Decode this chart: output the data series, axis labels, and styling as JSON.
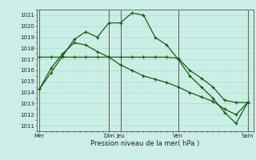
{
  "xlabel": "Pression niveau de la mer( hPa )",
  "background_color": "#cceee8",
  "grid_major_color": "#aaddcc",
  "grid_minor_color": "#bbeecc",
  "line_color": "#1a5c1a",
  "ylim": [
    1010.5,
    1021.5
  ],
  "yticks": [
    1011,
    1012,
    1013,
    1014,
    1015,
    1016,
    1017,
    1018,
    1019,
    1020,
    1021
  ],
  "vline_positions": [
    0,
    6,
    7,
    12,
    18
  ],
  "xtick_positions": [
    0,
    6,
    7,
    12,
    18
  ],
  "xtick_labels": [
    "Mer",
    "Dim",
    "Jeu",
    "Ven",
    "Sam"
  ],
  "series1_x": [
    0,
    1,
    2,
    3,
    4,
    5,
    6,
    7,
    8,
    9,
    10,
    11,
    12,
    13,
    14,
    15,
    16,
    17,
    18
  ],
  "series1_y": [
    1017.2,
    1017.2,
    1017.2,
    1017.2,
    1017.2,
    1017.2,
    1017.2,
    1017.2,
    1017.2,
    1017.2,
    1017.2,
    1017.2,
    1017.1,
    1016.0,
    1015.3,
    1014.5,
    1013.3,
    1013.1,
    1013.1
  ],
  "series2_x": [
    0,
    1,
    2,
    3,
    4,
    5,
    6,
    7,
    8,
    9,
    10,
    11,
    12,
    13,
    14,
    15,
    16,
    17,
    18
  ],
  "series2_y": [
    1014.3,
    1015.8,
    1017.3,
    1018.8,
    1019.5,
    1019.0,
    1020.3,
    1020.3,
    1021.2,
    1021.0,
    1019.0,
    1018.3,
    1017.0,
    1015.5,
    1014.5,
    1013.5,
    1012.2,
    1011.2,
    1013.1
  ],
  "series3_x": [
    0,
    1,
    2,
    3,
    4,
    5,
    6,
    7,
    8,
    9,
    10,
    11,
    12,
    13,
    14,
    15,
    16,
    17,
    18
  ],
  "series3_y": [
    1014.3,
    1016.2,
    1017.5,
    1018.5,
    1018.3,
    1017.7,
    1017.2,
    1016.5,
    1016.0,
    1015.5,
    1015.2,
    1014.9,
    1014.5,
    1014.0,
    1013.6,
    1013.2,
    1012.5,
    1012.0,
    1013.1
  ],
  "xlim": [
    -0.2,
    18.5
  ],
  "figsize": [
    3.2,
    2.0
  ],
  "dpi": 100
}
